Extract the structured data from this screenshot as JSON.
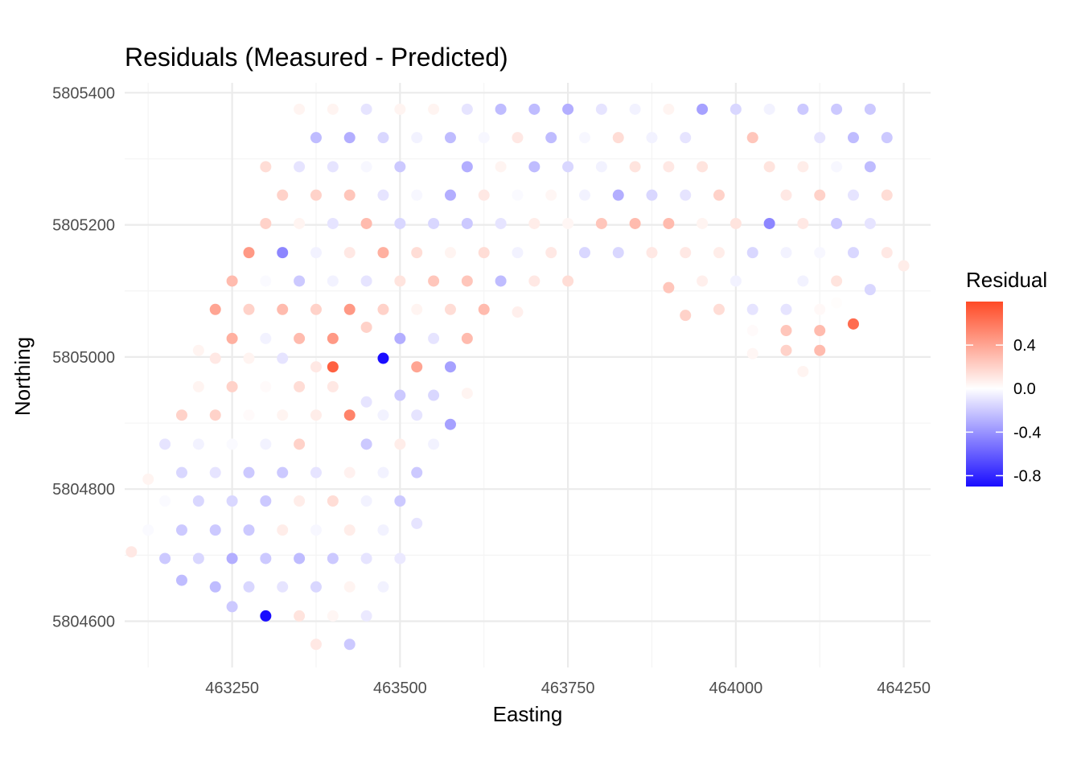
{
  "chart_data": {
    "type": "scatter",
    "title": "Residuals (Measured - Predicted)",
    "xlabel": "Easting",
    "ylabel": "Northing",
    "xlim": [
      463090,
      464290
    ],
    "ylim": [
      5804530,
      5805415
    ],
    "x_ticks": [
      463250,
      463500,
      463750,
      464000,
      464250
    ],
    "x_tick_labels": [
      "463250",
      "463500",
      "463750",
      "464000",
      "464250"
    ],
    "y_ticks": [
      5804600,
      5804800,
      5805000,
      5805200,
      5805400
    ],
    "y_tick_labels": [
      "5804600",
      "5804800",
      "5805000",
      "5805200",
      "5805400"
    ],
    "grid": true,
    "legend": {
      "title": "Residual",
      "placement": "right",
      "range": [
        -0.9,
        0.8
      ],
      "ticks": [
        0.4,
        0.0,
        -0.4,
        -0.8
      ],
      "tick_labels": [
        "0.4",
        "0.0",
        "-0.4",
        "-0.8"
      ],
      "low_color": "#1a0dff",
      "mid_color": "#ffffff",
      "high_color": "#ff4a26"
    },
    "columns": [
      "easting",
      "northing",
      "residual"
    ],
    "points": [
      [
        463350,
        5805375,
        0.05
      ],
      [
        463400,
        5805375,
        0.05
      ],
      [
        463450,
        5805375,
        -0.1
      ],
      [
        463500,
        5805375,
        0.05
      ],
      [
        463550,
        5805375,
        0.05
      ],
      [
        463600,
        5805375,
        -0.1
      ],
      [
        463650,
        5805375,
        -0.25
      ],
      [
        463700,
        5805375,
        -0.25
      ],
      [
        463750,
        5805375,
        -0.3
      ],
      [
        463800,
        5805375,
        -0.1
      ],
      [
        463850,
        5805375,
        -0.05
      ],
      [
        463900,
        5805375,
        0.05
      ],
      [
        463950,
        5805375,
        -0.35
      ],
      [
        464000,
        5805375,
        -0.15
      ],
      [
        464050,
        5805375,
        -0.05
      ],
      [
        464100,
        5805375,
        -0.2
      ],
      [
        464150,
        5805375,
        -0.2
      ],
      [
        464200,
        5805375,
        -0.2
      ],
      [
        463375,
        5805332,
        -0.25
      ],
      [
        463425,
        5805332,
        -0.3
      ],
      [
        463475,
        5805332,
        -0.15
      ],
      [
        463525,
        5805332,
        -0.05
      ],
      [
        463575,
        5805332,
        -0.25
      ],
      [
        463625,
        5805332,
        -0.03
      ],
      [
        463675,
        5805332,
        0.1
      ],
      [
        463725,
        5805332,
        -0.25
      ],
      [
        463775,
        5805332,
        -0.03
      ],
      [
        463825,
        5805332,
        0.15
      ],
      [
        463875,
        5805332,
        -0.05
      ],
      [
        463925,
        5805332,
        -0.1
      ],
      [
        464025,
        5805332,
        0.25
      ],
      [
        464125,
        5805332,
        -0.1
      ],
      [
        464175,
        5805332,
        -0.25
      ],
      [
        464225,
        5805332,
        -0.2
      ],
      [
        463300,
        5805288,
        0.15
      ],
      [
        463350,
        5805288,
        -0.1
      ],
      [
        463400,
        5805288,
        -0.1
      ],
      [
        463450,
        5805288,
        -0.03
      ],
      [
        463500,
        5805288,
        -0.2
      ],
      [
        463600,
        5805288,
        -0.3
      ],
      [
        463650,
        5805288,
        0.05
      ],
      [
        463700,
        5805288,
        -0.25
      ],
      [
        463750,
        5805288,
        -0.15
      ],
      [
        463800,
        5805288,
        -0.05
      ],
      [
        463850,
        5805288,
        0.12
      ],
      [
        463900,
        5805288,
        0.1
      ],
      [
        463950,
        5805288,
        0.12
      ],
      [
        464050,
        5805288,
        0.12
      ],
      [
        464100,
        5805288,
        0.08
      ],
      [
        464150,
        5805288,
        -0.03
      ],
      [
        464200,
        5805288,
        -0.25
      ],
      [
        463325,
        5805245,
        0.2
      ],
      [
        463375,
        5805245,
        0.2
      ],
      [
        463425,
        5805245,
        0.25
      ],
      [
        463475,
        5805245,
        -0.1
      ],
      [
        463525,
        5805245,
        -0.03
      ],
      [
        463575,
        5805245,
        -0.3
      ],
      [
        463625,
        5805245,
        0.1
      ],
      [
        463675,
        5805245,
        -0.02
      ],
      [
        463725,
        5805245,
        0.04
      ],
      [
        463775,
        5805245,
        -0.05
      ],
      [
        463825,
        5805245,
        -0.3
      ],
      [
        463875,
        5805245,
        -0.15
      ],
      [
        463925,
        5805245,
        -0.1
      ],
      [
        463975,
        5805245,
        0.2
      ],
      [
        464075,
        5805245,
        0.1
      ],
      [
        464125,
        5805245,
        0.2
      ],
      [
        464175,
        5805245,
        -0.1
      ],
      [
        464225,
        5805245,
        0.15
      ],
      [
        463300,
        5805202,
        0.2
      ],
      [
        463350,
        5805202,
        0.05
      ],
      [
        463400,
        5805202,
        -0.1
      ],
      [
        463450,
        5805202,
        0.3
      ],
      [
        463500,
        5805202,
        -0.15
      ],
      [
        463550,
        5805202,
        -0.15
      ],
      [
        463600,
        5805202,
        -0.2
      ],
      [
        463650,
        5805202,
        -0.1
      ],
      [
        463700,
        5805202,
        0.08
      ],
      [
        463750,
        5805202,
        0.04
      ],
      [
        463800,
        5805202,
        0.25
      ],
      [
        463850,
        5805202,
        0.3
      ],
      [
        463900,
        5805202,
        0.3
      ],
      [
        463950,
        5805202,
        0.05
      ],
      [
        464000,
        5805202,
        0.12
      ],
      [
        464050,
        5805202,
        -0.45
      ],
      [
        464100,
        5805202,
        0.1
      ],
      [
        464150,
        5805202,
        -0.2
      ],
      [
        464200,
        5805202,
        -0.1
      ],
      [
        463275,
        5805158,
        0.45
      ],
      [
        463325,
        5805158,
        -0.45
      ],
      [
        463375,
        5805158,
        -0.05
      ],
      [
        463425,
        5805158,
        0.1
      ],
      [
        463475,
        5805158,
        0.35
      ],
      [
        463525,
        5805158,
        0.15
      ],
      [
        463575,
        5805158,
        0.05
      ],
      [
        463625,
        5805158,
        0.15
      ],
      [
        463675,
        5805158,
        -0.05
      ],
      [
        463725,
        5805158,
        0.1
      ],
      [
        463775,
        5805158,
        -0.15
      ],
      [
        463825,
        5805158,
        -0.15
      ],
      [
        463875,
        5805158,
        0.1
      ],
      [
        463925,
        5805158,
        0.1
      ],
      [
        463975,
        5805158,
        0.08
      ],
      [
        464025,
        5805158,
        -0.15
      ],
      [
        464075,
        5805158,
        -0.05
      ],
      [
        464125,
        5805158,
        -0.03
      ],
      [
        464175,
        5805158,
        -0.15
      ],
      [
        464225,
        5805158,
        0.1
      ],
      [
        464250,
        5805138,
        0.08
      ],
      [
        463250,
        5805115,
        0.3
      ],
      [
        463300,
        5805115,
        -0.02
      ],
      [
        463350,
        5805115,
        -0.2
      ],
      [
        463400,
        5805115,
        -0.05
      ],
      [
        463450,
        5805115,
        -0.1
      ],
      [
        463500,
        5805115,
        0.12
      ],
      [
        463550,
        5805115,
        0.25
      ],
      [
        463600,
        5805115,
        0.25
      ],
      [
        463650,
        5805115,
        -0.25
      ],
      [
        463700,
        5805115,
        0.1
      ],
      [
        463750,
        5805115,
        0.15
      ],
      [
        463900,
        5805105,
        0.25
      ],
      [
        463950,
        5805115,
        0.07
      ],
      [
        464000,
        5805115,
        -0.05
      ],
      [
        464100,
        5805115,
        -0.05
      ],
      [
        464150,
        5805115,
        0.12
      ],
      [
        464200,
        5805102,
        -0.15
      ],
      [
        463225,
        5805072,
        0.4
      ],
      [
        463275,
        5805072,
        0.2
      ],
      [
        463325,
        5805072,
        0.3
      ],
      [
        463375,
        5805072,
        0.2
      ],
      [
        463425,
        5805072,
        0.45
      ],
      [
        463475,
        5805072,
        0.2
      ],
      [
        463525,
        5805072,
        0.05
      ],
      [
        463575,
        5805072,
        0.15
      ],
      [
        463625,
        5805072,
        0.3
      ],
      [
        463675,
        5805068,
        0.07
      ],
      [
        463925,
        5805063,
        0.2
      ],
      [
        463975,
        5805072,
        0.15
      ],
      [
        464025,
        5805072,
        -0.1
      ],
      [
        464075,
        5805072,
        -0.1
      ],
      [
        464125,
        5805072,
        0.03
      ],
      [
        464150,
        5805082,
        0.01
      ],
      [
        463250,
        5805028,
        0.35
      ],
      [
        463300,
        5805028,
        -0.05
      ],
      [
        463350,
        5805028,
        0.3
      ],
      [
        463400,
        5805028,
        0.45
      ],
      [
        463450,
        5805045,
        0.2
      ],
      [
        463500,
        5805028,
        -0.3
      ],
      [
        463550,
        5805028,
        -0.1
      ],
      [
        463600,
        5805028,
        0.3
      ],
      [
        464025,
        5805040,
        0.02
      ],
      [
        464075,
        5805040,
        0.25
      ],
      [
        464125,
        5805040,
        0.3
      ],
      [
        464175,
        5805050,
        0.65
      ],
      [
        463200,
        5805010,
        0.05
      ],
      [
        463225,
        5804998,
        0.1
      ],
      [
        463275,
        5804998,
        0.05
      ],
      [
        463325,
        5804998,
        -0.1
      ],
      [
        463375,
        5804985,
        0.1
      ],
      [
        463400,
        5804985,
        0.7
      ],
      [
        463475,
        5804998,
        -0.9
      ],
      [
        463525,
        5804985,
        0.4
      ],
      [
        463575,
        5804985,
        -0.35
      ],
      [
        464025,
        5805005,
        0.04
      ],
      [
        464075,
        5805010,
        0.2
      ],
      [
        464125,
        5805010,
        0.3
      ],
      [
        464100,
        5804978,
        0.05
      ],
      [
        463200,
        5804955,
        0.05
      ],
      [
        463250,
        5804955,
        0.2
      ],
      [
        463300,
        5804955,
        0.02
      ],
      [
        463350,
        5804955,
        0.15
      ],
      [
        463400,
        5804955,
        0.1
      ],
      [
        463450,
        5804932,
        -0.1
      ],
      [
        463500,
        5804942,
        -0.2
      ],
      [
        463550,
        5804942,
        -0.15
      ],
      [
        463600,
        5804945,
        0.05
      ],
      [
        463175,
        5804912,
        0.2
      ],
      [
        463225,
        5804912,
        0.2
      ],
      [
        463275,
        5804912,
        0.02
      ],
      [
        463325,
        5804912,
        0.05
      ],
      [
        463375,
        5804912,
        0.08
      ],
      [
        463425,
        5804912,
        0.55
      ],
      [
        463475,
        5804912,
        -0.05
      ],
      [
        463525,
        5804912,
        -0.1
      ],
      [
        463575,
        5804898,
        -0.35
      ],
      [
        463150,
        5804868,
        -0.1
      ],
      [
        463200,
        5804868,
        -0.05
      ],
      [
        463250,
        5804868,
        -0.02
      ],
      [
        463300,
        5804868,
        -0.05
      ],
      [
        463350,
        5804868,
        0.2
      ],
      [
        463450,
        5804868,
        -0.2
      ],
      [
        463500,
        5804868,
        0.08
      ],
      [
        463550,
        5804868,
        -0.05
      ],
      [
        463125,
        5804815,
        0.05
      ],
      [
        463175,
        5804825,
        -0.15
      ],
      [
        463225,
        5804825,
        -0.1
      ],
      [
        463275,
        5804825,
        -0.2
      ],
      [
        463325,
        5804825,
        -0.2
      ],
      [
        463375,
        5804825,
        -0.1
      ],
      [
        463425,
        5804825,
        0.06
      ],
      [
        463475,
        5804825,
        -0.05
      ],
      [
        463525,
        5804825,
        -0.2
      ],
      [
        463150,
        5804782,
        -0.02
      ],
      [
        463200,
        5804782,
        -0.15
      ],
      [
        463250,
        5804782,
        -0.15
      ],
      [
        463300,
        5804782,
        -0.2
      ],
      [
        463350,
        5804782,
        0.08
      ],
      [
        463400,
        5804782,
        0.15
      ],
      [
        463450,
        5804782,
        -0.05
      ],
      [
        463500,
        5804782,
        -0.2
      ],
      [
        463525,
        5804748,
        -0.1
      ],
      [
        463125,
        5804738,
        -0.02
      ],
      [
        463175,
        5804738,
        -0.2
      ],
      [
        463225,
        5804738,
        -0.2
      ],
      [
        463275,
        5804738,
        -0.2
      ],
      [
        463325,
        5804738,
        0.08
      ],
      [
        463375,
        5804738,
        -0.03
      ],
      [
        463425,
        5804738,
        0.08
      ],
      [
        463475,
        5804738,
        -0.05
      ],
      [
        463100,
        5804705,
        0.1
      ],
      [
        463150,
        5804695,
        -0.2
      ],
      [
        463200,
        5804695,
        -0.15
      ],
      [
        463250,
        5804695,
        -0.3
      ],
      [
        463300,
        5804695,
        -0.2
      ],
      [
        463350,
        5804695,
        -0.25
      ],
      [
        463400,
        5804695,
        -0.2
      ],
      [
        463450,
        5804695,
        -0.1
      ],
      [
        463500,
        5804695,
        -0.08
      ],
      [
        463175,
        5804662,
        -0.25
      ],
      [
        463225,
        5804652,
        -0.25
      ],
      [
        463275,
        5804652,
        -0.15
      ],
      [
        463325,
        5804652,
        -0.1
      ],
      [
        463375,
        5804652,
        -0.15
      ],
      [
        463425,
        5804652,
        0.05
      ],
      [
        463475,
        5804652,
        -0.05
      ],
      [
        463250,
        5804622,
        -0.2
      ],
      [
        463300,
        5804608,
        -0.95
      ],
      [
        463350,
        5804608,
        0.12
      ],
      [
        463400,
        5804608,
        0.04
      ],
      [
        463450,
        5804608,
        -0.08
      ],
      [
        463375,
        5804565,
        0.1
      ],
      [
        463425,
        5804565,
        -0.2
      ]
    ]
  }
}
